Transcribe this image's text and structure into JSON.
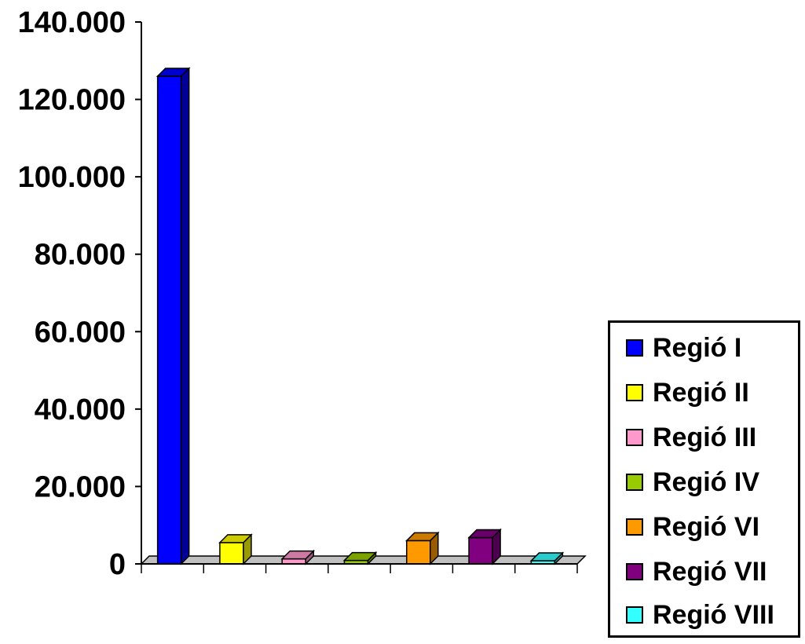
{
  "chart_data": {
    "type": "bar",
    "categories": [
      "Regió I",
      "Regió II",
      "Regió III",
      "Regió IV",
      "Regió VI",
      "Regió VII",
      "Regió VIII"
    ],
    "series": [
      {
        "name": "Regió I",
        "value": 126000,
        "color": "#0000ff"
      },
      {
        "name": "Regió II",
        "value": 5500,
        "color": "#ffff00"
      },
      {
        "name": "Regió III",
        "value": 1300,
        "color": "#ff99cc"
      },
      {
        "name": "Regió IV",
        "value": 900,
        "color": "#99cc00"
      },
      {
        "name": "Regió VI",
        "value": 6000,
        "color": "#ff9900"
      },
      {
        "name": "Regió VII",
        "value": 6800,
        "color": "#800080"
      },
      {
        "name": "Regió VIII",
        "value": 800,
        "color": "#33ffff"
      }
    ],
    "y_ticks": [
      "0",
      "20.000",
      "40.000",
      "60.000",
      "80.000",
      "100.000",
      "120.000",
      "140.000"
    ],
    "ylim": [
      0,
      140000
    ],
    "grid": false,
    "legend_position": "bottom-right",
    "three_d": true
  }
}
